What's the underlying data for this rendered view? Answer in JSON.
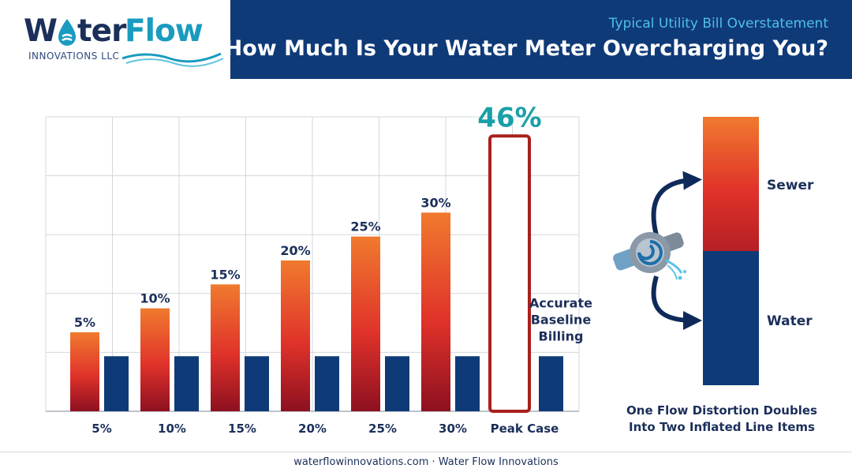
{
  "logo": {
    "word_part1": "W",
    "word_part2": "ter",
    "word_part3": "Flow",
    "subtitle": "INNOVATIONS LLC"
  },
  "header": {
    "subtitle": "Typical Utility Bill Overstatement",
    "title": "How Much Is Your Water Meter Overcharging You?"
  },
  "chart_data": {
    "type": "bar",
    "categories": [
      "5%",
      "10%",
      "15%",
      "20%",
      "25%",
      "30%",
      "Peak Case"
    ],
    "series": [
      {
        "values": [
          5,
          10,
          15,
          20,
          25,
          30,
          46
        ]
      },
      {
        "values": [
          0,
          0,
          0,
          0,
          0,
          0,
          0
        ]
      }
    ],
    "bar_labels": [
      "5%",
      "10%",
      "15%",
      "20%",
      "25%",
      "30%",
      "46%"
    ],
    "baseline_label_lines": [
      "Accurate",
      "Baseline",
      "Billing"
    ],
    "ylim": [
      -11.5,
      50
    ],
    "grid": true,
    "colors": {
      "gradient_top": "#f07a2e",
      "gradient_mid": "#e0322a",
      "gradient_bottom": "#8d1020",
      "baseline": "#0f3a78",
      "peak_outline": "#a8201c",
      "peak_label": "#1aa0a8"
    }
  },
  "illustration": {
    "stack_labels": [
      "Sewer",
      "Water"
    ],
    "caption_lines": [
      "One Flow Distortion Doubles",
      "Into Two Inflated Line Items"
    ],
    "icon": "water-meter-icon"
  },
  "footer": {
    "text": "waterflowinnovations.com · Water Flow Innovations"
  }
}
